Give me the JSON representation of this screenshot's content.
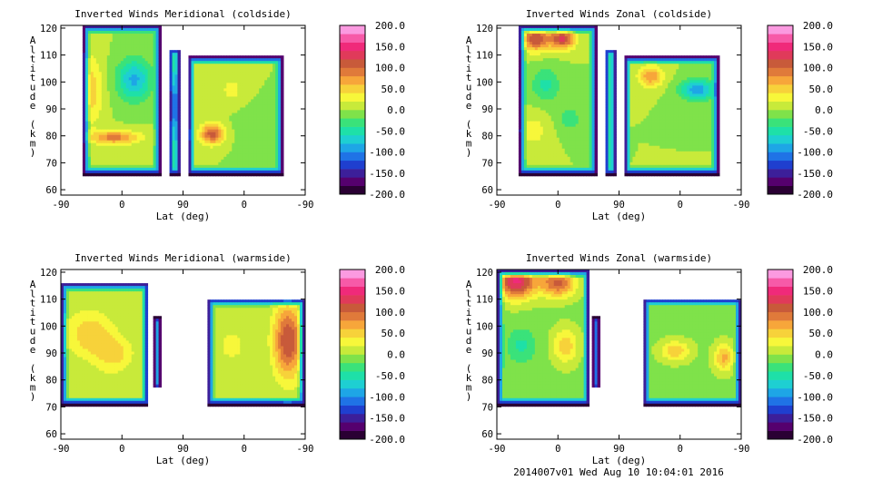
{
  "footer": "2014007v01 Wed Aug 10 10:04:01 2016",
  "colorbar": {
    "labels": [
      "200.0",
      "150.0",
      "100.0",
      "50.0",
      "0.0",
      "-50.0",
      "-100.0",
      "-150.0",
      "-200.0"
    ],
    "range": [
      -200,
      200
    ],
    "colors": [
      "#2a0033",
      "#55006e",
      "#3c1f9a",
      "#1f3fcf",
      "#1f73e6",
      "#1ea6e6",
      "#1ecfd2",
      "#1ee0a8",
      "#3ae27a",
      "#7fe24a",
      "#c8ea3a",
      "#f7f73a",
      "#f7d23a",
      "#f7a63a",
      "#e07a3a",
      "#c85a3a",
      "#e03a5a",
      "#f02a7a",
      "#f75aa8",
      "#fb9ae0"
    ]
  },
  "chart_data": [
    {
      "type": "heatmap",
      "title": "Inverted Winds Meridional (coldside)",
      "xlabel": "Lat (deg)",
      "ylabel": "Altitude (km)",
      "xticks": [
        "-90",
        "0",
        "90",
        "0",
        "-90"
      ],
      "yticks": [
        "60",
        "70",
        "80",
        "90",
        "100",
        "110",
        "120"
      ],
      "ylim": [
        58,
        121
      ],
      "zlim": [
        -200,
        200
      ]
    },
    {
      "type": "heatmap",
      "title": "Inverted Winds Zonal (coldside)",
      "xlabel": "Lat (deg)",
      "ylabel": "Altitude (km)",
      "xticks": [
        "-90",
        "0",
        "90",
        "0",
        "-90"
      ],
      "yticks": [
        "60",
        "70",
        "80",
        "90",
        "100",
        "110",
        "120"
      ],
      "ylim": [
        58,
        121
      ],
      "zlim": [
        -200,
        200
      ]
    },
    {
      "type": "heatmap",
      "title": "Inverted Winds Meridional (warmside)",
      "xlabel": "Lat (deg)",
      "ylabel": "Altitude (km)",
      "xticks": [
        "-90",
        "0",
        "90",
        "0",
        "-90"
      ],
      "yticks": [
        "60",
        "70",
        "80",
        "90",
        "100",
        "110",
        "120"
      ],
      "ylim": [
        58,
        121
      ],
      "zlim": [
        -200,
        200
      ]
    },
    {
      "type": "heatmap",
      "title": "Inverted Winds Zonal (warmside)",
      "xlabel": "Lat (deg)",
      "ylabel": "Altitude (km)",
      "xticks": [
        "-90",
        "0",
        "90",
        "0",
        "-90"
      ],
      "yticks": [
        "60",
        "70",
        "80",
        "90",
        "100",
        "110",
        "120"
      ],
      "ylim": [
        58,
        121
      ],
      "zlim": [
        -200,
        200
      ]
    }
  ]
}
